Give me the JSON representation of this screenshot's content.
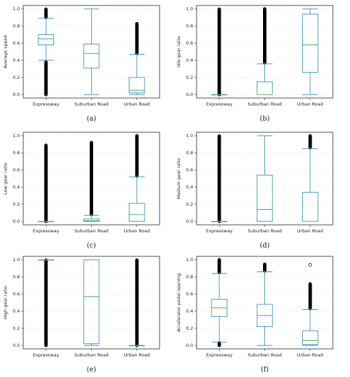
{
  "chart_data": [
    {
      "type": "box",
      "caption": "(a)",
      "ylabel": "Average speed",
      "ylim": [
        0,
        1
      ],
      "yticks": [
        "0.0",
        "0.2",
        "0.4",
        "0.6",
        "0.8",
        "1.0"
      ],
      "categories": [
        "Expressway",
        "Suburban Road",
        "Urban Road"
      ],
      "color": "#3a93b8",
      "median_color": "#4daa57",
      "grid": true,
      "boxes": [
        {
          "q1": 0.58,
          "median": 0.65,
          "q3": 0.7,
          "whisker_low": 0.4,
          "whisker_high": 0.89,
          "outliers": {
            "low": [
              0.0,
              0.38
            ],
            "high": [
              0.9,
              1.0
            ]
          }
        },
        {
          "q1": 0.31,
          "median": 0.48,
          "q3": 0.59,
          "whisker_low": 0.0,
          "whisker_high": 1.0,
          "outliers": {
            "low": null,
            "high": null
          }
        },
        {
          "q1": 0.02,
          "median": 0.05,
          "q3": 0.2,
          "whisker_low": 0.0,
          "whisker_high": 0.47,
          "outliers": {
            "low": null,
            "high": [
              0.48,
              0.83
            ]
          }
        }
      ]
    },
    {
      "type": "box",
      "caption": "(b)",
      "ylabel": "Idle gear ratio",
      "ylim": [
        0,
        1
      ],
      "yticks": [
        "0.0",
        "0.2",
        "0.4",
        "0.6",
        "0.8",
        "1.0"
      ],
      "categories": [
        "Expressway",
        "Suburban Road",
        "Urban Road"
      ],
      "color": "#3a93b8",
      "median_color": "#4daa57",
      "grid": true,
      "boxes": [
        {
          "q1": 0.0,
          "median": 0.0,
          "q3": 0.0,
          "whisker_low": 0.0,
          "whisker_high": 0.0,
          "outliers": {
            "low": null,
            "high": [
              0.0,
              1.0
            ]
          }
        },
        {
          "q1": 0.0,
          "median": 0.0,
          "q3": 0.15,
          "whisker_low": 0.0,
          "whisker_high": 0.36,
          "outliers": {
            "low": null,
            "high": [
              0.37,
              1.0
            ]
          }
        },
        {
          "q1": 0.26,
          "median": 0.58,
          "q3": 0.94,
          "whisker_low": 0.0,
          "whisker_high": 1.0,
          "outliers": {
            "low": null,
            "high": null
          }
        }
      ]
    },
    {
      "type": "box",
      "caption": "(c)",
      "ylabel": "Low gear ratio",
      "ylim": [
        0,
        1
      ],
      "yticks": [
        "0.0",
        "0.2",
        "0.4",
        "0.6",
        "0.8",
        "1.0"
      ],
      "categories": [
        "Expressway",
        "Suburban Road",
        "Urban Road"
      ],
      "color": "#3a93b8",
      "median_color": "#4daa57",
      "grid": true,
      "boxes": [
        {
          "q1": 0.0,
          "median": 0.0,
          "q3": 0.0,
          "whisker_low": 0.0,
          "whisker_high": 0.0,
          "outliers": {
            "low": null,
            "high": [
              0.0,
              0.89
            ]
          }
        },
        {
          "q1": 0.0,
          "median": 0.01,
          "q3": 0.03,
          "whisker_low": 0.0,
          "whisker_high": 0.07,
          "outliers": {
            "low": null,
            "high": [
              0.08,
              0.92
            ]
          }
        },
        {
          "q1": 0.0,
          "median": 0.08,
          "q3": 0.21,
          "whisker_low": 0.0,
          "whisker_high": 0.52,
          "outliers": {
            "low": null,
            "high": [
              0.53,
              1.0
            ]
          }
        }
      ]
    },
    {
      "type": "box",
      "caption": "(d)",
      "ylabel": "Medium gear ratio",
      "ylim": [
        0,
        1
      ],
      "yticks": [
        "0.0",
        "0.2",
        "0.4",
        "0.6",
        "0.8",
        "1.0"
      ],
      "categories": [
        "Expressway",
        "Suburban Road",
        "Urban Road"
      ],
      "color": "#3a93b8",
      "median_color": "#4daa57",
      "grid": true,
      "boxes": [
        {
          "q1": 0.0,
          "median": 0.0,
          "q3": 0.0,
          "whisker_low": 0.0,
          "whisker_high": 0.0,
          "outliers": {
            "low": null,
            "high": [
              0.0,
              1.0
            ]
          }
        },
        {
          "q1": 0.0,
          "median": 0.14,
          "q3": 0.54,
          "whisker_low": 0.0,
          "whisker_high": 1.0,
          "outliers": {
            "low": null,
            "high": null
          }
        },
        {
          "q1": 0.0,
          "median": 0.0,
          "q3": 0.34,
          "whisker_low": 0.0,
          "whisker_high": 0.85,
          "outliers": {
            "low": null,
            "high": [
              0.86,
              1.0
            ]
          }
        }
      ]
    },
    {
      "type": "box",
      "caption": "(e)",
      "ylabel": "High gear ratio",
      "ylim": [
        0,
        1
      ],
      "yticks": [
        "0.0",
        "0.2",
        "0.4",
        "0.6",
        "0.8",
        "1.0"
      ],
      "categories": [
        "Expressway",
        "Suburban Road",
        "Urban Road"
      ],
      "color": "#3a93b8",
      "median_color": "#4daa57",
      "grid": true,
      "boxes": [
        {
          "q1": 1.0,
          "median": 1.0,
          "q3": 1.0,
          "whisker_low": 1.0,
          "whisker_high": 1.0,
          "outliers": {
            "low": [
              0.0,
              1.0
            ],
            "high": null
          }
        },
        {
          "q1": 0.02,
          "median": 0.57,
          "q3": 1.0,
          "whisker_low": 0.0,
          "whisker_high": 1.0,
          "outliers": {
            "low": null,
            "high": null
          }
        },
        {
          "q1": 0.0,
          "median": 0.0,
          "q3": 0.0,
          "whisker_low": 0.0,
          "whisker_high": 0.0,
          "outliers": {
            "low": null,
            "high": [
              0.0,
              1.0
            ]
          }
        }
      ]
    },
    {
      "type": "box",
      "caption": "(f)",
      "ylabel": "Accelerator pedal opening",
      "ylim": [
        0,
        1
      ],
      "yticks": [
        "0.0",
        "0.2",
        "0.4",
        "0.6",
        "0.8",
        "1.0"
      ],
      "categories": [
        "Expressway",
        "Suburban Road",
        "Urban Road"
      ],
      "color": "#3a93b8",
      "median_color": "#4daa57",
      "grid": true,
      "boxes": [
        {
          "q1": 0.34,
          "median": 0.44,
          "q3": 0.54,
          "whisker_low": 0.04,
          "whisker_high": 0.84,
          "outliers": {
            "low": [
              0.0,
              0.03
            ],
            "high": [
              0.85,
              1.0
            ]
          }
        },
        {
          "q1": 0.22,
          "median": 0.35,
          "q3": 0.48,
          "whisker_low": 0.0,
          "whisker_high": 0.86,
          "outliers": {
            "low": null,
            "high": [
              0.87,
              0.95
            ]
          }
        },
        {
          "q1": 0.01,
          "median": 0.06,
          "q3": 0.17,
          "whisker_low": 0.0,
          "whisker_high": 0.42,
          "outliers": {
            "low": null,
            "high": [
              0.43,
              0.72
            ],
            "extra": [
              0.94
            ]
          }
        }
      ]
    }
  ]
}
